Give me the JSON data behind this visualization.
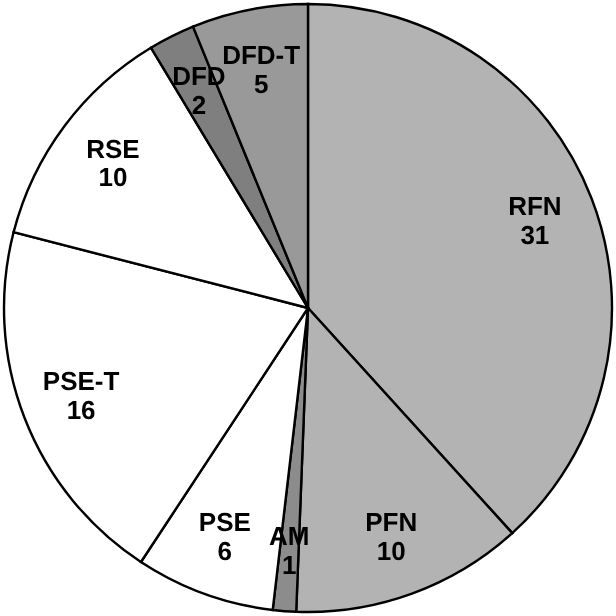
{
  "chart_data": {
    "type": "pie",
    "categories": [
      "RFN",
      "PFN",
      "AM",
      "PSE",
      "PSE-T",
      "RSE",
      "DFD",
      "DFD-T"
    ],
    "values": [
      31,
      10,
      1,
      6,
      16,
      10,
      2,
      5
    ],
    "colors": [
      "#b3b3b3",
      "#b3b3b3",
      "#8c8c8c",
      "#ffffff",
      "#ffffff",
      "#ffffff",
      "#7f7f7f",
      "#999999"
    ],
    "data_labels": true
  }
}
